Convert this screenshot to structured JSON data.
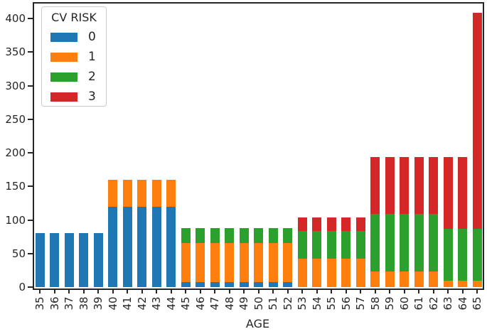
{
  "figure": {
    "background": "#ffffff",
    "text_color": "#262626",
    "spine_color": "#262626"
  },
  "xaxis": {
    "label": "AGE"
  },
  "legend": {
    "title": "CV RISK"
  },
  "chart_data": {
    "type": "bar",
    "stacked": true,
    "title": "",
    "xlabel": "AGE",
    "ylabel": "",
    "grid": false,
    "legend_title": "CV RISK",
    "legend_position": "upper left",
    "ylim": [
      0,
      425
    ],
    "yticks": [
      0,
      50,
      100,
      150,
      200,
      250,
      300,
      350,
      400
    ],
    "categories": [
      "35",
      "36",
      "37",
      "38",
      "39",
      "40",
      "41",
      "42",
      "43",
      "44",
      "45",
      "46",
      "47",
      "48",
      "49",
      "50",
      "51",
      "52",
      "53",
      "54",
      "55",
      "56",
      "57",
      "58",
      "59",
      "60",
      "61",
      "62",
      "63",
      "64",
      "65"
    ],
    "series": [
      {
        "name": "0",
        "color": "#1f77b4",
        "values": [
          80,
          80,
          80,
          80,
          80,
          120,
          120,
          120,
          120,
          120,
          7,
          7,
          7,
          7,
          7,
          7,
          7,
          7,
          0,
          0,
          0,
          0,
          0,
          0,
          0,
          0,
          0,
          0,
          0,
          0,
          0
        ]
      },
      {
        "name": "1",
        "color": "#ff7f0e",
        "values": [
          0,
          0,
          0,
          0,
          0,
          40,
          40,
          40,
          40,
          40,
          59,
          59,
          59,
          59,
          59,
          59,
          59,
          59,
          42,
          42,
          42,
          42,
          42,
          23,
          23,
          23,
          23,
          23,
          9,
          9,
          9
        ]
      },
      {
        "name": "2",
        "color": "#2ca02c",
        "values": [
          0,
          0,
          0,
          0,
          0,
          0,
          0,
          0,
          0,
          0,
          22,
          22,
          22,
          22,
          22,
          22,
          22,
          22,
          42,
          42,
          42,
          42,
          42,
          86,
          86,
          86,
          86,
          86,
          78,
          78,
          78
        ]
      },
      {
        "name": "3",
        "color": "#d62728",
        "values": [
          0,
          0,
          0,
          0,
          0,
          0,
          0,
          0,
          0,
          0,
          0,
          0,
          0,
          0,
          0,
          0,
          0,
          0,
          20,
          20,
          20,
          20,
          20,
          85,
          85,
          85,
          85,
          85,
          107,
          107,
          321
        ]
      }
    ]
  }
}
